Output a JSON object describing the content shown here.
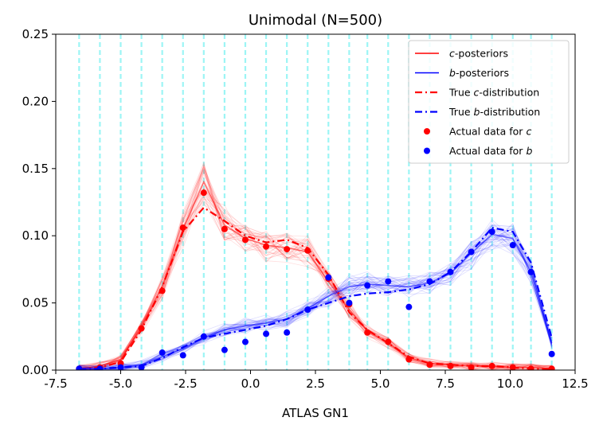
{
  "chart_data": {
    "type": "line",
    "title": "Unimodal (N=500)",
    "xlabel": "ATLAS GN1",
    "ylabel": "",
    "xlim": [
      -7.5,
      12.5
    ],
    "ylim": [
      0,
      0.25
    ],
    "xticks": [
      "-7.5",
      "-5.0",
      "-2.5",
      "0.0",
      "2.5",
      "5.0",
      "7.5",
      "10.0",
      "12.5"
    ],
    "yticks": [
      "0.00",
      "0.05",
      "0.10",
      "0.15",
      "0.20",
      "0.25"
    ],
    "grid": false,
    "legend_position": "top-right",
    "bin_centers": [
      -6.6,
      -5.8,
      -5.0,
      -4.2,
      -3.4,
      -2.6,
      -1.8,
      -1.0,
      -0.2,
      0.6,
      1.4,
      2.2,
      3.0,
      3.8,
      4.5,
      5.3,
      6.1,
      6.9,
      7.7,
      8.5,
      9.3,
      10.1,
      10.8,
      11.6
    ],
    "series": [
      {
        "name": "c-posteriors",
        "legend_label": "-posteriors",
        "legend_italic": "c",
        "color": "#ff0000",
        "style": "band",
        "values": [
          0.001,
          0.003,
          0.008,
          0.032,
          0.062,
          0.105,
          0.14,
          0.108,
          0.098,
          0.093,
          0.091,
          0.088,
          0.066,
          0.045,
          0.029,
          0.02,
          0.009,
          0.005,
          0.004,
          0.003,
          0.003,
          0.002,
          0.002,
          0.001
        ]
      },
      {
        "name": "b-posteriors",
        "legend_label": "-posteriors",
        "legend_italic": "b",
        "color": "#0000ff",
        "style": "band",
        "values": [
          0.001,
          0.001,
          0.002,
          0.004,
          0.01,
          0.016,
          0.024,
          0.03,
          0.033,
          0.035,
          0.038,
          0.046,
          0.055,
          0.062,
          0.064,
          0.063,
          0.062,
          0.065,
          0.072,
          0.087,
          0.101,
          0.098,
          0.073,
          0.02
        ]
      },
      {
        "name": "True c-distribution",
        "legend_label": "True -distribution",
        "legend_italic": "c",
        "color": "#ff0000",
        "style": "dashdot",
        "values": [
          0.001,
          0.002,
          0.006,
          0.03,
          0.062,
          0.103,
          0.121,
          0.111,
          0.1,
          0.095,
          0.097,
          0.091,
          0.071,
          0.043,
          0.03,
          0.02,
          0.01,
          0.005,
          0.004,
          0.003,
          0.003,
          0.002,
          0.001,
          0.001
        ]
      },
      {
        "name": "True b-distribution",
        "legend_label": "True -distribution",
        "legend_italic": "b",
        "color": "#0000ff",
        "style": "dashdot",
        "values": [
          0.001,
          0.001,
          0.002,
          0.003,
          0.009,
          0.017,
          0.024,
          0.027,
          0.03,
          0.033,
          0.038,
          0.045,
          0.05,
          0.055,
          0.057,
          0.058,
          0.06,
          0.064,
          0.073,
          0.088,
          0.106,
          0.103,
          0.08,
          0.024
        ]
      },
      {
        "name": "Actual data for c",
        "legend_label": "Actual data for ",
        "legend_italic": "c",
        "color": "#ff0000",
        "style": "markers",
        "values": [
          0.001,
          0.002,
          0.005,
          0.031,
          0.059,
          0.106,
          0.132,
          0.105,
          0.097,
          0.092,
          0.09,
          0.089,
          0.068,
          0.049,
          0.028,
          0.021,
          0.008,
          0.004,
          0.003,
          0.002,
          0.003,
          0.002,
          0.001,
          0.001
        ]
      },
      {
        "name": "Actual data for b",
        "legend_label": "Actual data for ",
        "legend_italic": "b",
        "color": "#0000ff",
        "style": "markers",
        "values": [
          0.001,
          0.001,
          0.002,
          0.002,
          0.013,
          0.011,
          0.025,
          0.015,
          0.021,
          0.027,
          0.028,
          0.045,
          0.069,
          0.05,
          0.063,
          0.066,
          0.047,
          0.066,
          0.073,
          0.088,
          0.103,
          0.093,
          0.073,
          0.012
        ]
      }
    ],
    "vertical_lines": {
      "color": "#9cf5f5",
      "style": "dashed",
      "x": [
        -6.6,
        -5.8,
        -5.0,
        -4.2,
        -3.4,
        -2.6,
        -1.8,
        -1.0,
        -0.2,
        0.6,
        1.4,
        2.2,
        3.0,
        3.8,
        4.5,
        5.3,
        6.1,
        6.9,
        7.7,
        8.5,
        9.3,
        10.1,
        10.8,
        11.6
      ]
    }
  }
}
